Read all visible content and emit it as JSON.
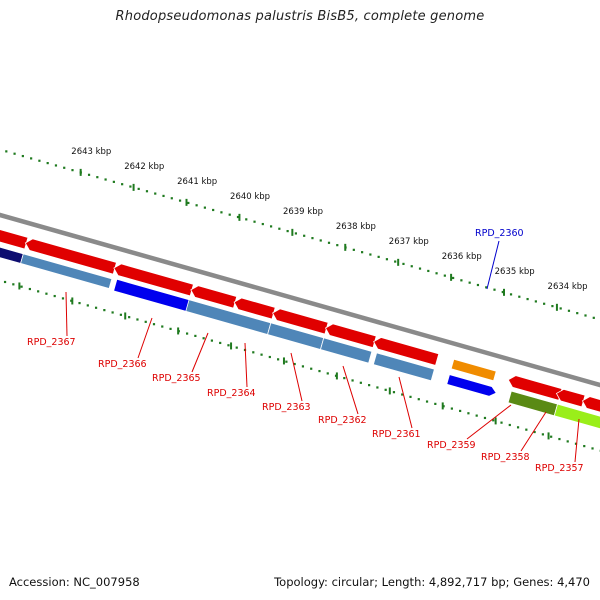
{
  "title": "Rhodopseudomonas palustris BisB5, complete genome",
  "footer": {
    "accession": "Accession: NC_007958",
    "topology": "Topology: circular; Length: 4,892,717 bp; Genes: 4,470"
  },
  "colors": {
    "backbone": "#8a8a8a",
    "tick": "#1f7a1f",
    "gene_red": "#e00000",
    "gene_steel": "#4f86b8",
    "gene_navy": "#0d0d70",
    "gene_blue": "#0000ee",
    "gene_orange": "#f08c00",
    "gene_olive": "#5a8a14",
    "gene_lime": "#9aee1a",
    "label_red": "#dd0000",
    "label_blue": "#0000cc"
  },
  "scale_labels": [
    "2643 kbp",
    "2642 kbp",
    "2641 kbp",
    "2640 kbp",
    "2639 kbp",
    "2638 kbp",
    "2637 kbp",
    "2636 kbp",
    "2635 kbp",
    "2634 kbp"
  ],
  "gene_labels": [
    {
      "name": "RPD_2367",
      "color": "red"
    },
    {
      "name": "RPD_2366",
      "color": "red"
    },
    {
      "name": "RPD_2365",
      "color": "red"
    },
    {
      "name": "RPD_2364",
      "color": "red"
    },
    {
      "name": "RPD_2363",
      "color": "red"
    },
    {
      "name": "RPD_2362",
      "color": "red"
    },
    {
      "name": "RPD_2361",
      "color": "red"
    },
    {
      "name": "RPD_2360",
      "color": "blue"
    },
    {
      "name": "RPD_2359",
      "color": "red"
    },
    {
      "name": "RPD_2358",
      "color": "red"
    },
    {
      "name": "RPD_2357",
      "color": "red"
    }
  ]
}
